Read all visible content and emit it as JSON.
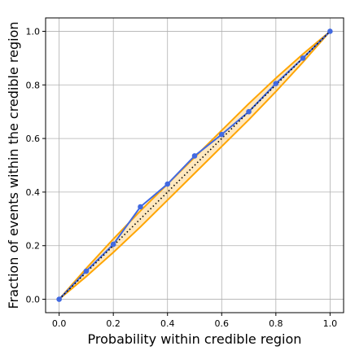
{
  "chart_data": {
    "type": "line",
    "title": "",
    "xlabel": "Probability within credible region",
    "ylabel": "Fraction of events within the credible region",
    "xlim": [
      0.0,
      1.0
    ],
    "ylim": [
      0.0,
      1.0
    ],
    "xticks": [
      "0.0",
      "0.2",
      "0.4",
      "0.6",
      "0.8",
      "1.0"
    ],
    "yticks": [
      "0.0",
      "0.2",
      "0.4",
      "0.6",
      "0.8",
      "1.0"
    ],
    "grid": true,
    "legend": "none",
    "series": [
      {
        "role": "pp-plot",
        "color": "#4169e1",
        "x": [
          0.0,
          0.1,
          0.2,
          0.3,
          0.4,
          0.5,
          0.6,
          0.7,
          0.8,
          0.9,
          1.0
        ],
        "y": [
          0.0,
          0.105,
          0.205,
          0.345,
          0.43,
          0.535,
          0.615,
          0.7,
          0.805,
          0.9,
          1.0
        ]
      },
      {
        "role": "diagonal",
        "color": "#000000",
        "style": "dotted",
        "x": [
          0.0,
          1.0
        ],
        "y": [
          0.0,
          1.0
        ]
      }
    ],
    "confidence_band": {
      "color": "#ffa500",
      "x": [
        0.0,
        0.1,
        0.2,
        0.3,
        0.4,
        0.5,
        0.6,
        0.7,
        0.8,
        0.9,
        1.0
      ],
      "upper": [
        0.0,
        0.115,
        0.225,
        0.33,
        0.43,
        0.53,
        0.63,
        0.73,
        0.825,
        0.915,
        1.0
      ],
      "lower": [
        0.0,
        0.085,
        0.175,
        0.27,
        0.37,
        0.47,
        0.57,
        0.67,
        0.775,
        0.885,
        1.0
      ]
    }
  }
}
